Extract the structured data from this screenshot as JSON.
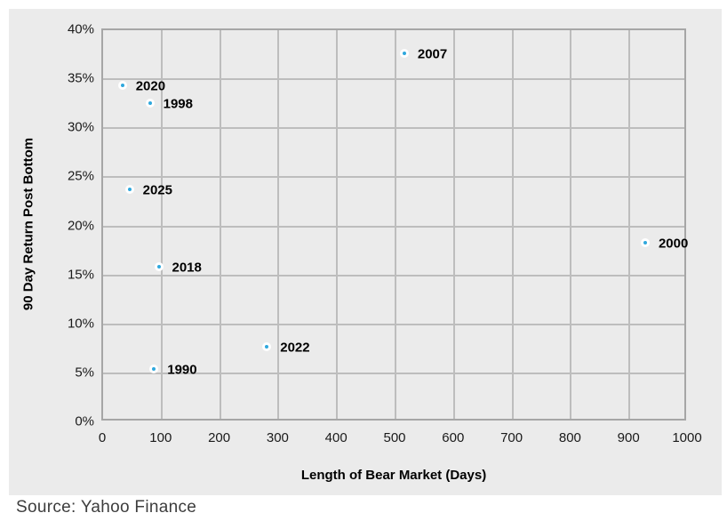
{
  "chart_data": {
    "type": "scatter",
    "title": "",
    "xlabel": "Length of Bear Market (Days)",
    "ylabel": "90 Day Return Post Bottom",
    "xlim": [
      0,
      1000
    ],
    "ylim_percent": [
      0,
      40
    ],
    "x_ticks": [
      0,
      100,
      200,
      300,
      400,
      500,
      600,
      700,
      800,
      900,
      1000
    ],
    "y_ticks_percent": [
      0,
      5,
      10,
      15,
      20,
      25,
      30,
      35,
      40
    ],
    "grid": true,
    "legend_position": "none",
    "points": [
      {
        "label": "2020",
        "x": 33,
        "y_percent": 34.4
      },
      {
        "label": "1998",
        "x": 80,
        "y_percent": 32.6
      },
      {
        "label": "2025",
        "x": 45,
        "y_percent": 23.8
      },
      {
        "label": "2018",
        "x": 95,
        "y_percent": 15.9
      },
      {
        "label": "1990",
        "x": 87,
        "y_percent": 5.4
      },
      {
        "label": "2022",
        "x": 280,
        "y_percent": 7.7
      },
      {
        "label": "2007",
        "x": 515,
        "y_percent": 37.6
      },
      {
        "label": "2000",
        "x": 927,
        "y_percent": 18.3
      }
    ]
  },
  "colors": {
    "panel_background": "#ebebeb",
    "grid_line": "#bdbdbd",
    "plot_border": "#a6a6a6",
    "marker_fill": "#2fa8dd",
    "marker_ring": "#ffffff",
    "tick_text": "#1a1a1a",
    "source_text": "#3d3d3d"
  },
  "footer": {
    "source": "Source: Yahoo Finance"
  }
}
